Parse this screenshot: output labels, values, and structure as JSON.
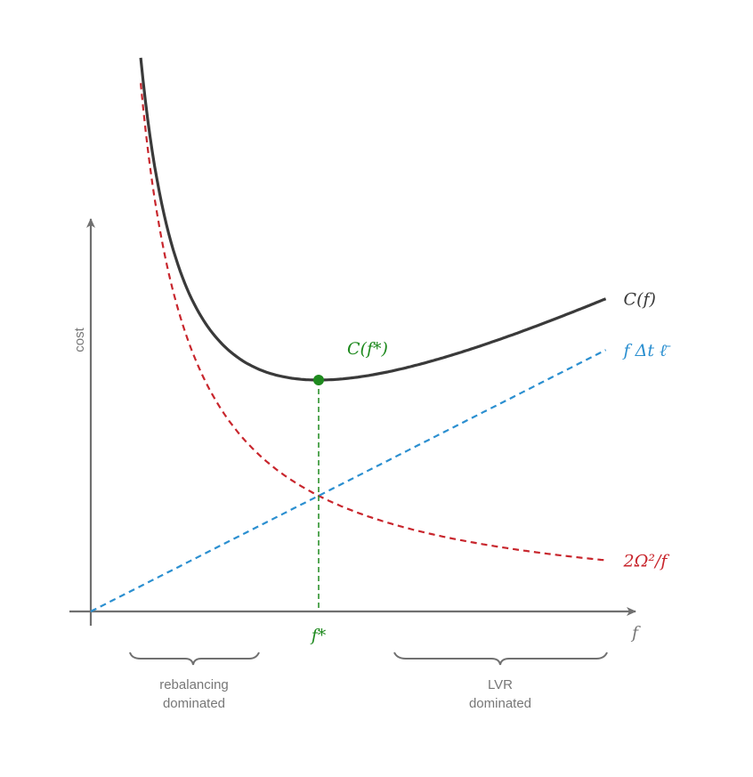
{
  "chart_data": {
    "type": "line",
    "ylabel": "cost",
    "xlabel": "f",
    "xlim": [
      -0.094,
      2.39
    ],
    "ylim": [
      -0.12,
      3.4
    ],
    "grid": false,
    "f_star": 1,
    "series": [
      {
        "name": "C(f)",
        "formula": "f + 1/f",
        "linear_coef": 1,
        "inverse_coef": 1,
        "domain": [
          0.219,
          2.26
        ],
        "color": "#3a3a3a",
        "style": "solid"
      },
      {
        "name": "f Δt ℓ̄",
        "formula": "f",
        "linear_coef": 1,
        "inverse_coef": 0,
        "domain": [
          0,
          2.26
        ],
        "color": "#2b8fd0",
        "style": "dashed"
      },
      {
        "name": "2Ω²/f",
        "formula": "1/f",
        "linear_coef": 0,
        "inverse_coef": 1,
        "domain": [
          0.219,
          2.26
        ],
        "color": "#c8262d",
        "style": "dashed"
      }
    ],
    "annotations": {
      "optimum_label": "C(f*)",
      "fstar_tick": "f*",
      "optimum_color": "#1e8a1e",
      "left_region": [
        "rebalancing",
        "dominated"
      ],
      "right_region": [
        "LVR",
        "dominated"
      ]
    }
  }
}
